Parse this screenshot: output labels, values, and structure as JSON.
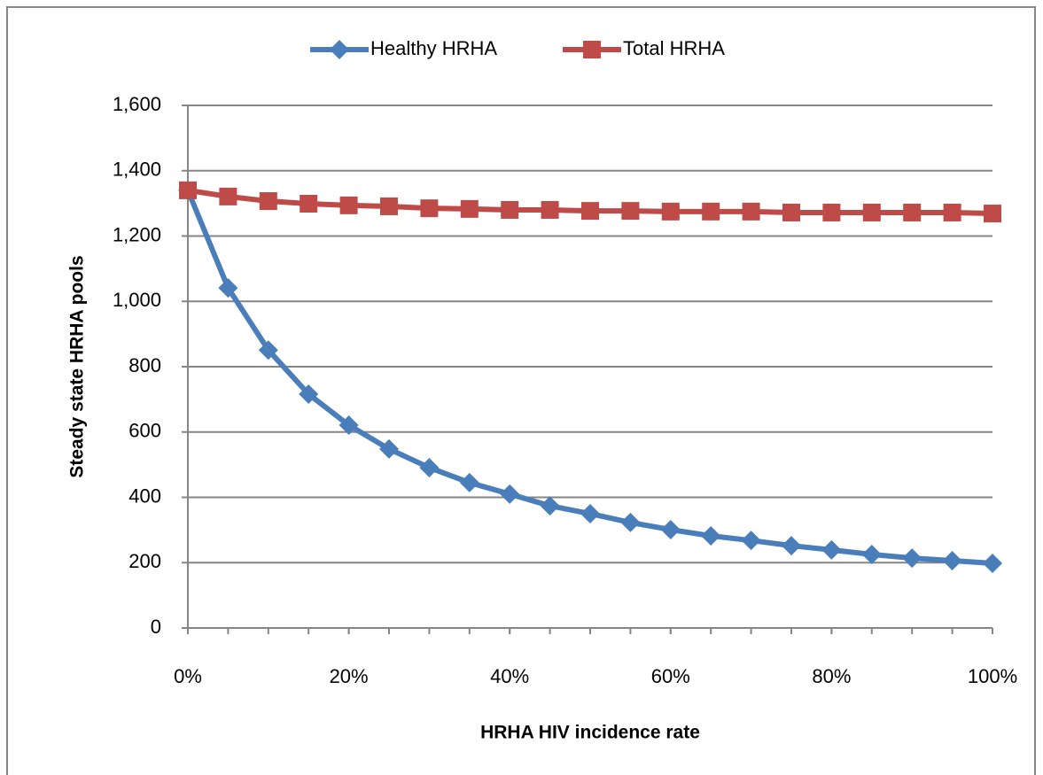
{
  "chart_data": {
    "type": "line",
    "x_label": "HRHA HIV incidence rate",
    "y_label": "Steady state HRHA pools",
    "x": [
      0,
      5,
      10,
      15,
      20,
      25,
      30,
      35,
      40,
      45,
      50,
      55,
      60,
      65,
      70,
      75,
      80,
      85,
      90,
      95,
      100
    ],
    "series": [
      {
        "name": "Healthy HRHA",
        "color": "#4a7ebb",
        "marker": "diamond",
        "values": [
          1340,
          1041,
          851,
          716,
          621,
          548,
          491,
          445,
          410,
          374,
          350,
          323,
          301,
          282,
          268,
          252,
          239,
          225,
          214,
          206,
          198
        ]
      },
      {
        "name": "Total HRHA",
        "color": "#be4b48",
        "marker": "square",
        "values": [
          1340,
          1321,
          1307,
          1299,
          1294,
          1291,
          1285,
          1283,
          1280,
          1280,
          1277,
          1277,
          1275,
          1275,
          1275,
          1272,
          1272,
          1272,
          1272,
          1272,
          1269
        ]
      }
    ],
    "xlim": [
      0,
      100
    ],
    "xticks": [
      {
        "value": 0,
        "label": "0%"
      },
      {
        "value": 20,
        "label": "20%"
      },
      {
        "value": 40,
        "label": "40%"
      },
      {
        "value": 60,
        "label": "60%"
      },
      {
        "value": 80,
        "label": "80%"
      },
      {
        "value": 100,
        "label": "100%"
      }
    ],
    "ylim": [
      0,
      1600
    ],
    "yticks": [
      0,
      200,
      400,
      600,
      800,
      {
        "value": 1000,
        "label": "1,000"
      },
      {
        "value": 1200,
        "label": "1,200"
      },
      {
        "value": 1400,
        "label": "1,400"
      },
      {
        "value": 1600,
        "label": "1,600"
      }
    ],
    "grid": true,
    "legend": "top"
  }
}
